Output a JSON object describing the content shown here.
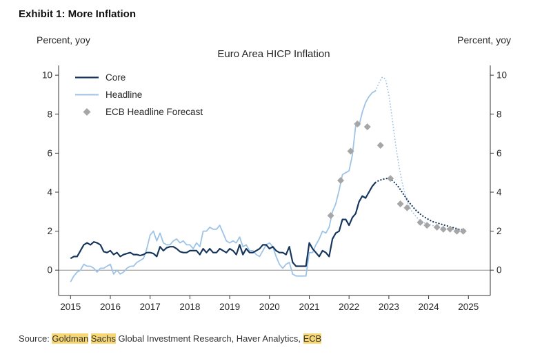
{
  "exhibit_title": "Exhibit 1: More Inflation",
  "source": {
    "segments": [
      {
        "text": "Source: ",
        "highlight": false
      },
      {
        "text": "Goldman",
        "highlight": true
      },
      {
        "text": " ",
        "highlight": false
      },
      {
        "text": "Sachs",
        "highlight": true
      },
      {
        "text": " Global Investment Research, Haver Analytics, ",
        "highlight": false
      },
      {
        "text": "ECB",
        "highlight": true
      }
    ],
    "highlight_color": "#f7d674"
  },
  "chart_data": {
    "type": "line",
    "title": "Euro Area HICP Inflation",
    "y_axis_label_left": "Percent, yoy",
    "y_axis_label_right": "Percent, yoy",
    "ylim": [
      -1.3,
      10.5
    ],
    "yticks": [
      0,
      2,
      4,
      6,
      8,
      10
    ],
    "xlim": [
      2014.7,
      2025.55
    ],
    "xticks": [
      2015,
      2016,
      2017,
      2018,
      2019,
      2020,
      2021,
      2022,
      2023,
      2024,
      2025
    ],
    "zero_line": true,
    "grid": false,
    "legend_position": "top-left-inside",
    "colors": {
      "core": "#17365d",
      "headline": "#9dc3e6",
      "forecast_marker": "#a6a6a6"
    },
    "legend": [
      {
        "label": "Core",
        "swatch": "line",
        "color": "#17365d",
        "width": 2.2
      },
      {
        "label": "Headline",
        "swatch": "line",
        "color": "#9dc3e6",
        "width": 2
      },
      {
        "label": "ECB Headline Forecast",
        "swatch": "diamond",
        "color": "#a6a6a6"
      }
    ],
    "series": [
      {
        "name": "headline-actual",
        "color": "#9dc3e6",
        "width": 1.8,
        "dash": null,
        "start": 2015.0,
        "step": 0.0833333,
        "values": [
          -0.6,
          -0.3,
          -0.1,
          0.0,
          0.3,
          0.2,
          0.2,
          0.1,
          -0.1,
          0.1,
          0.1,
          0.2,
          0.3,
          -0.2,
          0.0,
          -0.2,
          -0.1,
          0.1,
          0.2,
          0.2,
          0.4,
          0.5,
          0.6,
          1.1,
          1.8,
          2.0,
          1.5,
          1.9,
          1.4,
          1.3,
          1.3,
          1.5,
          1.6,
          1.4,
          1.5,
          1.3,
          1.3,
          1.1,
          1.4,
          1.2,
          2.0,
          2.0,
          2.2,
          2.1,
          2.1,
          2.3,
          1.9,
          1.5,
          1.4,
          1.5,
          1.4,
          1.7,
          1.2,
          1.3,
          1.0,
          1.0,
          0.8,
          0.7,
          1.0,
          1.3,
          1.4,
          1.2,
          0.7,
          0.3,
          0.1,
          0.3,
          0.4,
          -0.2,
          -0.3,
          -0.3,
          -0.3,
          -0.3,
          0.9,
          0.9,
          1.3,
          1.6,
          2.0,
          1.9,
          2.2,
          3.0,
          3.4,
          4.1,
          4.9,
          5.0,
          5.1,
          5.9,
          7.4,
          7.4,
          8.1,
          8.6,
          8.9,
          9.1,
          9.2
        ]
      },
      {
        "name": "headline-forecast",
        "color": "#9dc3e6",
        "width": 1.8,
        "dash": "0.1 4.2",
        "start": 2022.6667,
        "step": 0.0833333,
        "values": [
          9.2,
          9.6,
          9.9,
          9.8,
          9.0,
          7.8,
          6.5,
          5.4,
          4.5,
          3.8,
          3.3,
          3.0,
          2.8,
          2.6,
          2.5,
          2.4,
          2.35,
          2.3,
          2.25,
          2.2,
          2.18,
          2.15,
          2.12,
          2.1,
          2.08,
          2.05,
          2.03,
          2.0
        ]
      },
      {
        "name": "core-actual",
        "color": "#17365d",
        "width": 2.2,
        "dash": null,
        "start": 2015.0,
        "step": 0.0833333,
        "values": [
          0.6,
          0.7,
          0.7,
          1.0,
          1.3,
          1.4,
          1.3,
          1.45,
          1.4,
          1.3,
          0.95,
          0.9,
          1.0,
          0.8,
          0.9,
          0.7,
          0.8,
          0.85,
          0.9,
          0.8,
          0.8,
          0.75,
          0.8,
          0.9,
          0.9,
          0.85,
          0.7,
          1.2,
          1.0,
          1.15,
          1.2,
          1.2,
          1.1,
          0.95,
          0.9,
          0.9,
          1.0,
          1.0,
          1.0,
          0.8,
          1.1,
          0.9,
          1.1,
          0.9,
          0.9,
          1.1,
          1.0,
          0.9,
          1.1,
          1.0,
          0.8,
          1.3,
          0.8,
          1.1,
          0.9,
          0.9,
          1.0,
          1.1,
          1.3,
          1.3,
          1.1,
          1.2,
          1.0,
          0.9,
          0.9,
          0.8,
          1.2,
          0.4,
          0.2,
          0.2,
          0.2,
          0.2,
          1.4,
          1.1,
          0.9,
          0.7,
          1.0,
          0.9,
          0.7,
          1.6,
          1.9,
          2.0,
          2.6,
          2.6,
          2.3,
          2.7,
          2.9,
          3.5,
          3.8,
          3.7,
          4.0,
          4.3,
          4.5
        ]
      },
      {
        "name": "core-forecast",
        "color": "#17365d",
        "width": 2.2,
        "dash": "0.1 4.2",
        "start": 2022.6667,
        "step": 0.0833333,
        "values": [
          4.5,
          4.6,
          4.65,
          4.7,
          4.7,
          4.6,
          4.45,
          4.25,
          4.0,
          3.75,
          3.5,
          3.3,
          3.1,
          2.95,
          2.8,
          2.7,
          2.6,
          2.5,
          2.45,
          2.4,
          2.35,
          2.3,
          2.25,
          2.2,
          2.15,
          2.1,
          2.08,
          2.05
        ]
      }
    ],
    "markers": {
      "name": "ECB Headline Forecast",
      "shape": "diamond",
      "color": "#a6a6a6",
      "points": [
        [
          2021.54,
          2.8
        ],
        [
          2021.79,
          4.6
        ],
        [
          2022.04,
          6.1
        ],
        [
          2022.21,
          7.5
        ],
        [
          2022.46,
          7.35
        ],
        [
          2022.79,
          6.4
        ],
        [
          2023.04,
          4.7
        ],
        [
          2023.29,
          3.4
        ],
        [
          2023.46,
          3.2
        ],
        [
          2023.79,
          2.45
        ],
        [
          2023.96,
          2.3
        ],
        [
          2024.21,
          2.2
        ],
        [
          2024.37,
          2.1
        ],
        [
          2024.54,
          2.1
        ],
        [
          2024.71,
          2.0
        ],
        [
          2024.87,
          2.0
        ]
      ]
    }
  }
}
